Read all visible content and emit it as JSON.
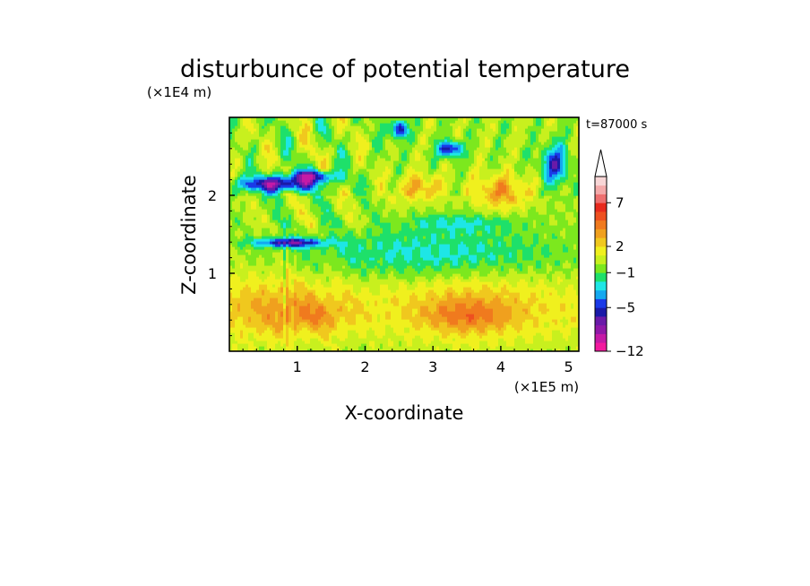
{
  "chart_data": {
    "type": "heatmap",
    "title": "disturbunce of potential temperature",
    "xlabel": "X-coordinate",
    "ylabel": "Z-coordinate",
    "x_unit": "(×1E5 m)",
    "y_unit": "(×1E4 m)",
    "time_label": "t=87000 s",
    "xlim": [
      0,
      5.15
    ],
    "ylim": [
      0,
      3.0
    ],
    "x_ticks": [
      1,
      2,
      3,
      4,
      5
    ],
    "y_ticks": [
      1,
      2
    ],
    "colorbar": {
      "levels": [
        -12,
        -10,
        -8,
        -7,
        -6,
        -5,
        -4,
        -3,
        -2,
        -1,
        0,
        1,
        2,
        3,
        4,
        5,
        6,
        7,
        8,
        9
      ],
      "tick_labels": [
        {
          "value": -12,
          "label": "-12"
        },
        {
          "value": -5,
          "label": "-5"
        },
        {
          "value": -1,
          "label": "-1"
        },
        {
          "value": 2,
          "label": "2"
        },
        {
          "value": 7,
          "label": "7"
        }
      ],
      "extend": "max",
      "colors": [
        "#f21a9e",
        "#c51aa6",
        "#9018a8",
        "#6a1aa8",
        "#1a1aa8",
        "#1a3ae8",
        "#14a8f0",
        "#1ee6e6",
        "#1ee06a",
        "#7ce81e",
        "#c8f01e",
        "#f0f01e",
        "#f0c81e",
        "#f0a01e",
        "#f07a1e",
        "#ee5020",
        "#e82a1e",
        "#ee7070",
        "#f4aaaa",
        "#f8d6d6"
      ]
    },
    "features": [
      {
        "x": 3.4,
        "z": 0.5,
        "value": 4
      },
      {
        "x": 1.2,
        "z": 0.5,
        "value": 3
      },
      {
        "x": 3.0,
        "z": 1.3,
        "value": 0
      },
      {
        "x": 0.7,
        "z": 2.1,
        "value": -5
      },
      {
        "x": 1.2,
        "z": 2.2,
        "value": -5
      },
      {
        "x": 2.5,
        "z": 2.8,
        "value": -5
      },
      {
        "x": 3.2,
        "z": 2.6,
        "value": -5
      },
      {
        "x": 0.9,
        "z": 1.4,
        "value": -5
      },
      {
        "x": 3.8,
        "z": 1.7,
        "value": -1
      },
      {
        "x": 2.8,
        "z": 2.1,
        "value": 3
      },
      {
        "x": 4.0,
        "z": 2.1,
        "value": 4
      }
    ]
  }
}
